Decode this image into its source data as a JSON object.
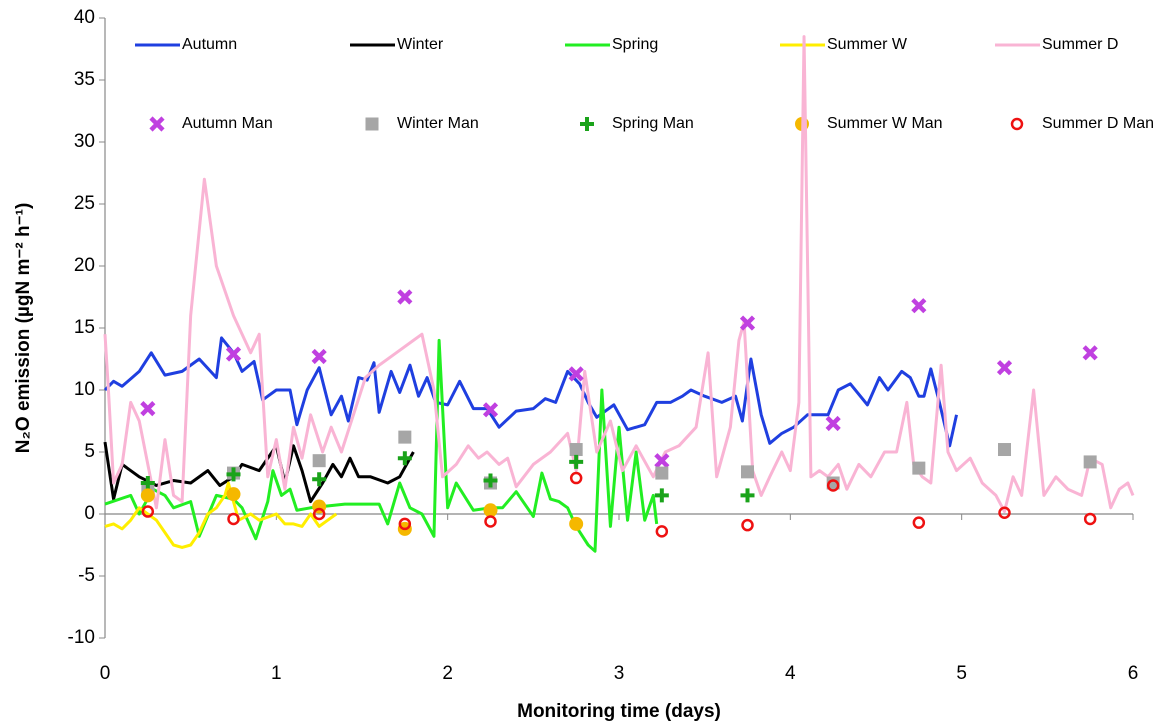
{
  "chart_data": {
    "type": "line",
    "x_label": "Monitoring time (days)",
    "y_label": "N₂O emission (µgN m⁻² h⁻¹)",
    "xlim": [
      0,
      6
    ],
    "xticks": [
      0,
      1,
      2,
      3,
      4,
      5,
      6
    ],
    "ylim": [
      -10,
      40
    ],
    "yticks": [
      -10,
      -5,
      0,
      5,
      10,
      15,
      20,
      25,
      30,
      35,
      40
    ],
    "grid": false,
    "legend": "top",
    "series": [
      {
        "name": "Autumn",
        "type": "line",
        "color": "#1f3fe0",
        "x": [
          0,
          0.05,
          0.1,
          0.2,
          0.27,
          0.35,
          0.45,
          0.55,
          0.65,
          0.68,
          0.75,
          0.8,
          0.87,
          0.92,
          1.0,
          1.08,
          1.12,
          1.18,
          1.25,
          1.32,
          1.38,
          1.42,
          1.48,
          1.53,
          1.57,
          1.6,
          1.67,
          1.72,
          1.78,
          1.83,
          1.88,
          1.93,
          2.0,
          2.07,
          2.15,
          2.23,
          2.3,
          2.4,
          2.5,
          2.57,
          2.63,
          2.7,
          2.77,
          2.82,
          2.87,
          2.97,
          3.05,
          3.15,
          3.22,
          3.3,
          3.37,
          3.42,
          3.5,
          3.6,
          3.68,
          3.72,
          3.77,
          3.83,
          3.88,
          3.95,
          4.02,
          4.1,
          4.22,
          4.28,
          4.35,
          4.45,
          4.52,
          4.57,
          4.65,
          4.7,
          4.75,
          4.78,
          4.82,
          4.87,
          4.93,
          4.97
        ],
        "values": [
          10,
          10.7,
          10.3,
          11.5,
          13,
          11.2,
          11.5,
          12.5,
          11,
          14.2,
          13,
          11.5,
          12.3,
          9.2,
          10,
          10,
          7.2,
          10,
          11.8,
          8,
          9.5,
          7.5,
          11,
          10.8,
          12.2,
          8.2,
          11.5,
          9.8,
          12,
          9.5,
          11,
          9,
          8.8,
          10.7,
          8.5,
          8.5,
          7,
          8.3,
          8.5,
          9.3,
          9,
          11.5,
          10.5,
          9,
          7.8,
          8.8,
          6.8,
          7.2,
          9,
          9,
          9.5,
          10,
          9.5,
          9,
          9.5,
          7.5,
          12.5,
          8,
          5.7,
          6.5,
          7,
          8,
          8,
          10,
          10.5,
          8.8,
          11,
          10,
          11.5,
          11,
          9.5,
          9.5,
          11.7,
          9,
          5.5,
          8
        ]
      },
      {
        "name": "Winter",
        "type": "line",
        "color": "#000000",
        "x": [
          0,
          0.05,
          0.1,
          0.2,
          0.3,
          0.4,
          0.5,
          0.6,
          0.67,
          0.75,
          0.8,
          0.9,
          1.0,
          1.05,
          1.1,
          1.15,
          1.2,
          1.27,
          1.33,
          1.38,
          1.43,
          1.48,
          1.55,
          1.65,
          1.72,
          1.8
        ],
        "values": [
          5.8,
          1.2,
          4,
          3,
          2.3,
          2.7,
          2.5,
          3.5,
          2.3,
          3,
          4,
          3.5,
          5.5,
          2.5,
          5.5,
          3.5,
          1,
          2.5,
          4,
          3,
          4.5,
          3,
          3,
          2.5,
          3,
          5
        ]
      },
      {
        "name": "Spring",
        "type": "line",
        "color": "#22ee22",
        "x": [
          0,
          0.15,
          0.2,
          0.28,
          0.35,
          0.4,
          0.5,
          0.55,
          0.65,
          0.75,
          0.8,
          0.88,
          0.95,
          0.98,
          1.03,
          1.08,
          1.12,
          1.2,
          1.4,
          1.5,
          1.6,
          1.65,
          1.72,
          1.78,
          1.85,
          1.92,
          1.95,
          2.0,
          2.05,
          2.15,
          2.25,
          2.32,
          2.4,
          2.5,
          2.55,
          2.6,
          2.65,
          2.7,
          2.75,
          2.82,
          2.86,
          2.9,
          2.95,
          3.0,
          3.05,
          3.1,
          3.15,
          3.2,
          3.22
        ],
        "values": [
          0.8,
          1.5,
          0,
          2,
          1.5,
          0.5,
          1,
          -1.8,
          1.5,
          1.2,
          0.5,
          -2,
          1,
          3.5,
          1.5,
          2,
          0.3,
          0.5,
          0.8,
          0.8,
          0.8,
          -0.8,
          2.5,
          0.5,
          0,
          -1.8,
          14,
          0.5,
          2.5,
          0.3,
          0.5,
          0.5,
          1.8,
          -0.2,
          3.3,
          1.2,
          1,
          0.5,
          -1,
          -2.5,
          -3,
          10,
          -1,
          7,
          -0.5,
          5,
          -0.5,
          1.5,
          -0.8
        ]
      },
      {
        "name": "Summer W",
        "type": "line",
        "color": "#ffee00",
        "x": [
          0,
          0.05,
          0.1,
          0.15,
          0.2,
          0.25,
          0.3,
          0.4,
          0.45,
          0.5,
          0.55,
          0.6,
          0.65,
          0.7,
          0.72,
          0.78,
          0.85,
          0.9,
          1.0,
          1.05,
          1.1,
          1.15,
          1.2,
          1.25,
          1.3,
          1.35
        ],
        "values": [
          -1,
          -0.8,
          -1.2,
          -0.5,
          0.5,
          0,
          -0.5,
          -2.5,
          -2.7,
          -2.5,
          -1.5,
          0,
          0.5,
          1.5,
          2.5,
          -0.5,
          0,
          -0.5,
          0,
          -0.8,
          -0.8,
          -1,
          0,
          -1,
          -0.5,
          0
        ]
      },
      {
        "name": "Summer D",
        "type": "line",
        "color": "#f9b4d4",
        "x": [
          0,
          0.02,
          0.05,
          0.1,
          0.15,
          0.2,
          0.25,
          0.3,
          0.35,
          0.4,
          0.45,
          0.5,
          0.58,
          0.65,
          0.75,
          0.85,
          0.9,
          0.95,
          1.0,
          1.05,
          1.1,
          1.15,
          1.2,
          1.27,
          1.32,
          1.38,
          1.45,
          1.52,
          1.6,
          1.7,
          1.8,
          1.85,
          1.92,
          1.97,
          2.05,
          2.12,
          2.18,
          2.23,
          2.3,
          2.35,
          2.4,
          2.5,
          2.6,
          2.7,
          2.75,
          2.8,
          2.87,
          2.95,
          3.02,
          3.1,
          3.2,
          3.27,
          3.35,
          3.45,
          3.52,
          3.57,
          3.65,
          3.7,
          3.73,
          3.78,
          3.83,
          3.88,
          3.95,
          4.0,
          4.05,
          4.08,
          4.12,
          4.17,
          4.22,
          4.28,
          4.33,
          4.4,
          4.47,
          4.55,
          4.62,
          4.68,
          4.72,
          4.77,
          4.82,
          4.88,
          4.92,
          4.97,
          5.05,
          5.12,
          5.2,
          5.25,
          5.3,
          5.35,
          5.42,
          5.48,
          5.55,
          5.62,
          5.7,
          5.75,
          5.82,
          5.87,
          5.92,
          5.97,
          6.0
        ],
        "values": [
          14.5,
          10,
          2.5,
          4,
          9,
          7.5,
          4,
          0.5,
          6,
          1.5,
          1,
          16,
          27,
          20,
          16,
          13,
          14.5,
          3,
          6,
          2,
          7,
          4.5,
          8,
          5,
          7,
          5,
          8,
          11,
          12,
          13,
          14,
          14.5,
          10,
          3,
          4,
          5.5,
          4.5,
          5,
          4,
          4.5,
          2.2,
          4,
          5,
          6.5,
          3.5,
          11.5,
          5,
          7.5,
          3.5,
          5.5,
          3,
          5,
          5.5,
          7,
          13,
          3,
          7,
          14,
          15.5,
          3.5,
          1.5,
          3,
          5,
          3.5,
          9,
          38.5,
          3,
          3.5,
          3,
          4,
          2,
          4,
          3,
          5,
          5,
          9,
          4,
          3,
          2.5,
          12,
          5,
          3.5,
          4.5,
          2.5,
          1.5,
          0.2,
          3,
          1.5,
          10,
          1.5,
          3,
          2,
          1.5,
          4.5,
          4,
          0.5,
          2,
          2.5,
          1.5
        ]
      },
      {
        "name": "Autumn Man",
        "type": "scatter",
        "marker": "cross",
        "color": "#c040e0",
        "x": [
          0.25,
          0.75,
          1.25,
          1.75,
          2.25,
          2.75,
          3.25,
          3.75,
          4.25,
          4.75,
          5.25,
          5.75
        ],
        "values": [
          8.5,
          12.9,
          12.7,
          17.5,
          8.4,
          11.3,
          4.3,
          15.4,
          7.3,
          16.8,
          11.8,
          13
        ]
      },
      {
        "name": "Winter Man",
        "type": "scatter",
        "marker": "square",
        "color": "#a6a6a6",
        "x": [
          0.25,
          0.75,
          1.25,
          1.75,
          2.25,
          2.75,
          3.25,
          3.75,
          4.25,
          4.75,
          5.25,
          5.75
        ],
        "values": [
          2,
          3.3,
          4.3,
          6.2,
          2.5,
          5.2,
          3.3,
          3.4,
          2.5,
          3.7,
          5.2,
          4.2
        ]
      },
      {
        "name": "Spring Man",
        "type": "scatter",
        "marker": "plus",
        "color": "#1aa31a",
        "x": [
          0.25,
          0.75,
          1.25,
          1.75,
          2.25,
          2.75,
          3.25,
          3.75
        ],
        "values": [
          2.5,
          3.2,
          2.8,
          4.5,
          2.7,
          4.2,
          1.5,
          1.5
        ]
      },
      {
        "name": "Summer W Man",
        "type": "scatter",
        "marker": "circle",
        "color": "#f5b800",
        "x": [
          0.25,
          0.75,
          1.25,
          1.75,
          2.25,
          2.75
        ],
        "values": [
          1.5,
          1.6,
          0.6,
          -1.2,
          0.3,
          -0.8
        ]
      },
      {
        "name": "Summer D Man",
        "type": "scatter",
        "marker": "open-circle",
        "color": "#ee1111",
        "x": [
          0.25,
          0.75,
          1.25,
          1.75,
          2.25,
          2.75,
          3.25,
          3.75,
          4.25,
          4.75,
          5.25,
          5.75
        ],
        "values": [
          0.2,
          -0.4,
          0,
          -0.8,
          -0.6,
          2.9,
          -1.4,
          -0.9,
          2.3,
          -0.7,
          0.1,
          -0.4
        ]
      }
    ]
  }
}
